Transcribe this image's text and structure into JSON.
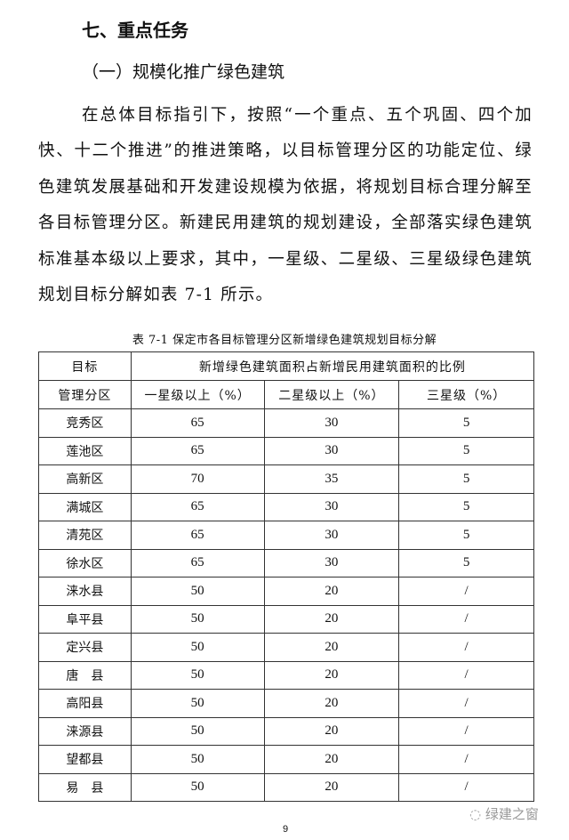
{
  "heading": "七、重点任务",
  "subheading": "（一）规模化推广绿色建筑",
  "paragraph": "在总体目标指引下，按照“一个重点、五个巩固、四个加快、十二个推进”的推进策略，以目标管理分区的功能定位、绿色建筑发展基础和开发建设规模为依据，将规划目标合理分解至各目标管理分区。新建民用建筑的规划建设，全部落实绿色建筑标准基本级以上要求，其中，一星级、二星级、三星级绿色建筑规划目标分解如表 7-1 所示。",
  "table": {
    "caption": "表 7-1 保定市各目标管理分区新增绿色建筑规划目标分解",
    "row_header_line1": "目标",
    "row_header_line2": "管理分区",
    "group_header": "新增绿色建筑面积占新增民用建筑面积的比例",
    "columns": [
      "一星级以上（%）",
      "二星级以上（%）",
      "三星级（%）"
    ],
    "rows": [
      [
        "竞秀区",
        "65",
        "30",
        "5"
      ],
      [
        "莲池区",
        "65",
        "30",
        "5"
      ],
      [
        "高新区",
        "70",
        "35",
        "5"
      ],
      [
        "满城区",
        "65",
        "30",
        "5"
      ],
      [
        "清苑区",
        "65",
        "30",
        "5"
      ],
      [
        "徐水区",
        "65",
        "30",
        "5"
      ],
      [
        "涞水县",
        "50",
        "20",
        "/"
      ],
      [
        "阜平县",
        "50",
        "20",
        "/"
      ],
      [
        "定兴县",
        "50",
        "20",
        "/"
      ],
      [
        "唐　县",
        "50",
        "20",
        "/"
      ],
      [
        "高阳县",
        "50",
        "20",
        "/"
      ],
      [
        "涞源县",
        "50",
        "20",
        "/"
      ],
      [
        "望都县",
        "50",
        "20",
        "/"
      ],
      [
        "易　县",
        "50",
        "20",
        "/"
      ]
    ]
  },
  "page_number": "9",
  "watermark": "绿建之窗"
}
